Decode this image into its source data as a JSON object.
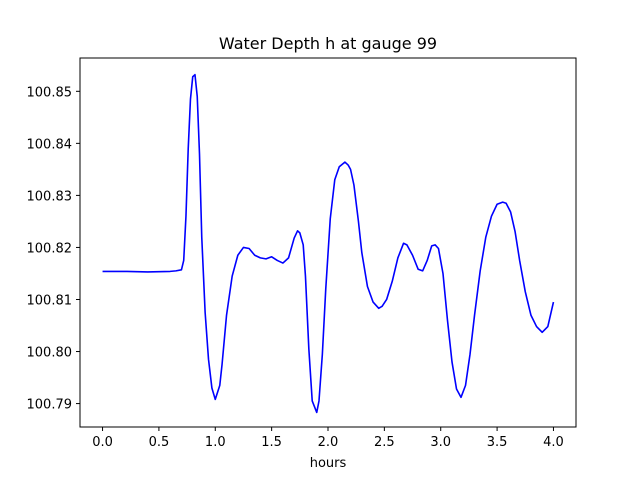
{
  "chart_data": {
    "type": "line",
    "title": "Water Depth h at gauge 99",
    "xlabel": "hours",
    "ylabel": "",
    "xlim": [
      -0.2,
      4.2
    ],
    "ylim": [
      100.7855,
      100.8564
    ],
    "xticks": [
      0.0,
      0.5,
      1.0,
      1.5,
      2.0,
      2.5,
      3.0,
      3.5,
      4.0
    ],
    "xtick_labels": [
      "0.0",
      "0.5",
      "1.0",
      "1.5",
      "2.0",
      "2.5",
      "3.0",
      "3.5",
      "4.0"
    ],
    "yticks": [
      100.79,
      100.8,
      100.81,
      100.82,
      100.83,
      100.84,
      100.85
    ],
    "ytick_labels": [
      "100.79",
      "100.80",
      "100.81",
      "100.82",
      "100.83",
      "100.84",
      "100.85"
    ],
    "grid": false,
    "series": [
      {
        "color": "#0000ff",
        "x": [
          0.0,
          0.2,
          0.4,
          0.6,
          0.65,
          0.7,
          0.72,
          0.74,
          0.76,
          0.78,
          0.8,
          0.82,
          0.84,
          0.86,
          0.88,
          0.91,
          0.94,
          0.97,
          1.0,
          1.04,
          1.06,
          1.1,
          1.15,
          1.2,
          1.25,
          1.3,
          1.35,
          1.4,
          1.45,
          1.5,
          1.55,
          1.6,
          1.65,
          1.7,
          1.73,
          1.75,
          1.78,
          1.8,
          1.83,
          1.86,
          1.9,
          1.92,
          1.95,
          1.98,
          2.02,
          2.06,
          2.1,
          2.15,
          2.18,
          2.2,
          2.23,
          2.27,
          2.3,
          2.35,
          2.4,
          2.45,
          2.48,
          2.52,
          2.57,
          2.62,
          2.67,
          2.7,
          2.75,
          2.8,
          2.84,
          2.88,
          2.92,
          2.95,
          2.98,
          3.02,
          3.06,
          3.1,
          3.14,
          3.18,
          3.22,
          3.26,
          3.3,
          3.35,
          3.4,
          3.45,
          3.5,
          3.55,
          3.58,
          3.62,
          3.66,
          3.7,
          3.75,
          3.8,
          3.85,
          3.9,
          3.95,
          4.0
        ],
        "y": [
          100.8154,
          100.8154,
          100.8153,
          100.8154,
          100.8155,
          100.8157,
          100.8175,
          100.826,
          100.839,
          100.8485,
          100.8528,
          100.8532,
          100.849,
          100.838,
          100.822,
          100.8075,
          100.7985,
          100.793,
          100.7908,
          100.7935,
          100.7975,
          100.807,
          100.8145,
          100.8185,
          100.82,
          100.8198,
          100.8185,
          100.818,
          100.8178,
          100.8182,
          100.8175,
          100.817,
          100.818,
          100.8218,
          100.8232,
          100.8228,
          100.8205,
          100.8145,
          100.8005,
          100.7905,
          100.7883,
          100.7905,
          100.7995,
          100.812,
          100.8255,
          100.833,
          100.8355,
          100.8364,
          100.8358,
          100.835,
          100.832,
          100.825,
          100.819,
          100.8125,
          100.8095,
          100.8083,
          100.8087,
          100.81,
          100.8135,
          100.818,
          100.8208,
          100.8205,
          100.8185,
          100.8158,
          100.8155,
          100.8175,
          100.8203,
          100.8205,
          100.8198,
          100.815,
          100.806,
          100.798,
          100.7928,
          100.7912,
          100.7935,
          100.7995,
          100.807,
          100.8155,
          100.822,
          100.826,
          100.8283,
          100.8287,
          100.8285,
          100.8268,
          100.823,
          100.8175,
          100.8115,
          100.807,
          100.8048,
          100.8037,
          100.8048,
          100.8095
        ]
      }
    ]
  }
}
